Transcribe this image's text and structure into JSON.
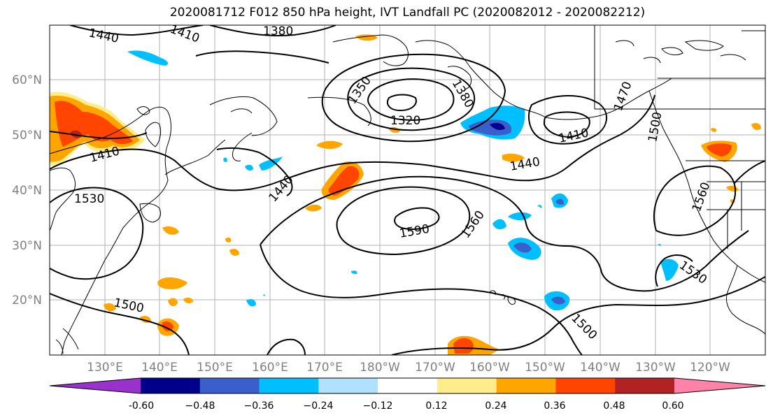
{
  "title": "2020081712 F012 850 hPa height, IVT Landfall PC (2020082012 - 2020082212)",
  "latitude_labels": [
    "60°N",
    "50°N",
    "40°N",
    "30°N",
    "20°N"
  ],
  "longitude_labels": [
    "130°E",
    "140°E",
    "150°E",
    "160°E",
    "170°E",
    "180°W",
    "170°W",
    "160°W",
    "150°W",
    "140°W",
    "130°W",
    "120°W"
  ],
  "colorbar": {
    "colors": [
      "#9932cc",
      "#00008b",
      "#3a5fcd",
      "#00bfff",
      "#b0e2ff",
      "#ffffff",
      "#ffec8b",
      "#ffa500",
      "#ff4500",
      "#b22222",
      "#ff82ab"
    ],
    "tick_labels": [
      "-0.60",
      "−0.48",
      "−0.36",
      "−0.24",
      "−0.12",
      "0.12",
      "0.24",
      "0.36",
      "0.48",
      "0.60"
    ]
  },
  "contour_labels": [
    "1440",
    "1380",
    "1350",
    "1320",
    "1380",
    "1410",
    "1440",
    "1410",
    "1440",
    "1530",
    "1590",
    "1560",
    "1500",
    "1500",
    "1530",
    "1560",
    "1500",
    "1470",
    "1470",
    "1410"
  ],
  "contour_color": "#000000",
  "coastline_color": "#000000",
  "grid_color": "#b0b0b0"
}
